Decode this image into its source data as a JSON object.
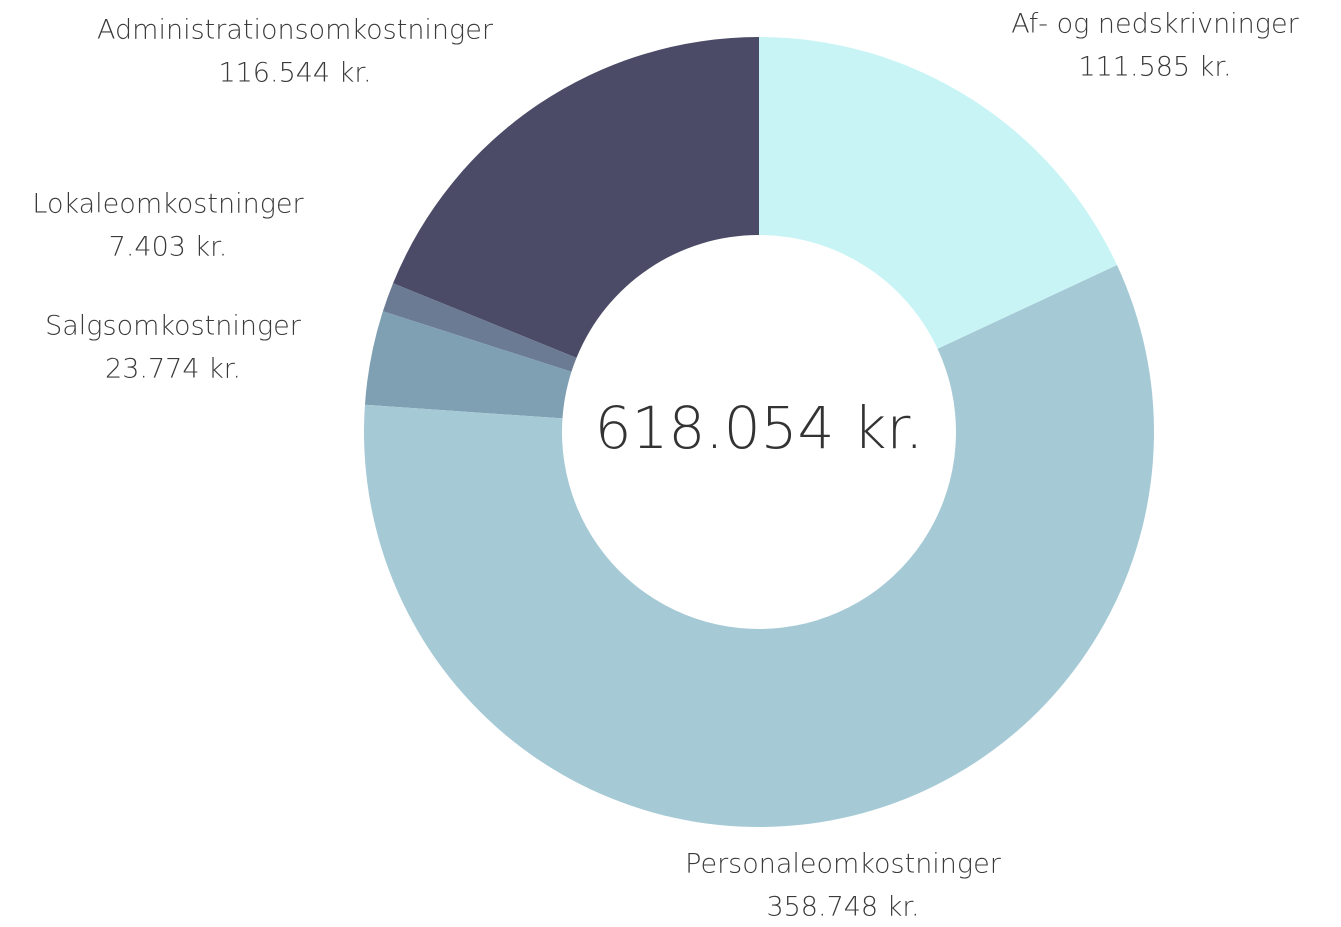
{
  "chart_data": {
    "type": "donut",
    "categories": [
      "Af- og nedskrivninger",
      "Personaleomkostninger",
      "Salgsomkostninger",
      "Lokaleomkostninger",
      "Administrationsomkostninger"
    ],
    "values": [
      111585,
      358748,
      23774,
      7403,
      116544
    ],
    "value_labels": [
      "111.585 kr.",
      "358.748 kr.",
      "23.774 kr.",
      "7.403 kr.",
      "116.544 kr."
    ],
    "colors": [
      "#c8f4f6",
      "#a5cad6",
      "#7f9fb3",
      "#6a7b93",
      "#4b4b68"
    ],
    "total": 618054,
    "total_label": "618.054 kr."
  }
}
